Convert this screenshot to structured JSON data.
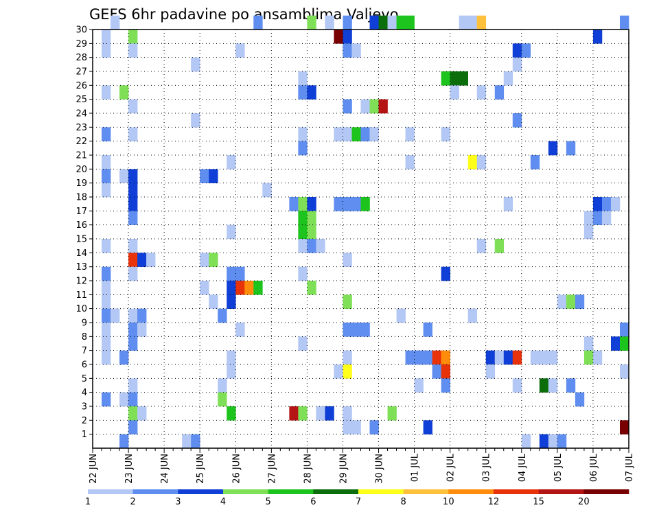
{
  "chart_data": {
    "type": "heatmap",
    "title": "GEFS 6hr padavine po ansamblima Valjevo",
    "xlabel": "",
    "ylabel": "",
    "x_ticks": [
      "22 JUN",
      "23 JUN",
      "24 JUN",
      "25 JUN",
      "26 JUN",
      "27 JUN",
      "28 JUN",
      "29 JUN",
      "30 JUN",
      "01 JUL",
      "02 JUL",
      "03 JUL",
      "04 JUL",
      "05 JUL",
      "06 JUL",
      "07 JUL"
    ],
    "y_ticks": [
      "1",
      "2",
      "3",
      "4",
      "5",
      "6",
      "7",
      "8",
      "9",
      "10",
      "11",
      "12",
      "13",
      "14",
      "15",
      "16",
      "17",
      "18",
      "19",
      "20",
      "21",
      "22",
      "23",
      "24",
      "25",
      "26",
      "27",
      "28",
      "29",
      "30"
    ],
    "x_unit": "6-hour steps from 22 JUN 00 UTC",
    "ylim": [
      0,
      30
    ],
    "grid": true,
    "colorbar": {
      "labels": [
        "1",
        "2",
        "3",
        "4",
        "5",
        "6",
        "7",
        "8",
        "10",
        "12",
        "15",
        "20"
      ],
      "colors": [
        "#b4c8f5",
        "#5f8ef0",
        "#0f3fd6",
        "#7fe058",
        "#1dc41d",
        "#0b6e0b",
        "#ffff19",
        "#ffc03c",
        "#ff8c0a",
        "#e8320a",
        "#b41414",
        "#780000"
      ]
    },
    "cells": [
      [
        2,
        30,
        0
      ],
      [
        18,
        30,
        1
      ],
      [
        24,
        30,
        3
      ],
      [
        26,
        30,
        0
      ],
      [
        28,
        30,
        1
      ],
      [
        31,
        30,
        2
      ],
      [
        32,
        30,
        5
      ],
      [
        33,
        30,
        0
      ],
      [
        34,
        30,
        4
      ],
      [
        35,
        30,
        4
      ],
      [
        41,
        30,
        0
      ],
      [
        42,
        30,
        0
      ],
      [
        43,
        30,
        7
      ],
      [
        59,
        30,
        1
      ],
      [
        1,
        29,
        0
      ],
      [
        4,
        29,
        3
      ],
      [
        27,
        29,
        11
      ],
      [
        28,
        29,
        2
      ],
      [
        56,
        29,
        2
      ],
      [
        1,
        28,
        0
      ],
      [
        4,
        28,
        0
      ],
      [
        16,
        28,
        0
      ],
      [
        28,
        28,
        1
      ],
      [
        29,
        28,
        0
      ],
      [
        47,
        28,
        2
      ],
      [
        48,
        28,
        1
      ],
      [
        11,
        27,
        0
      ],
      [
        47,
        27,
        0
      ],
      [
        23,
        26,
        0
      ],
      [
        39,
        26,
        4
      ],
      [
        40,
        26,
        5
      ],
      [
        41,
        26,
        5
      ],
      [
        46,
        26,
        0
      ],
      [
        1,
        25,
        0
      ],
      [
        3,
        25,
        3
      ],
      [
        23,
        25,
        1
      ],
      [
        24,
        25,
        2
      ],
      [
        40,
        25,
        0
      ],
      [
        43,
        25,
        0
      ],
      [
        45,
        25,
        1
      ],
      [
        4,
        24,
        0
      ],
      [
        28,
        24,
        1
      ],
      [
        30,
        24,
        0
      ],
      [
        31,
        24,
        3
      ],
      [
        32,
        24,
        10
      ],
      [
        11,
        23,
        0
      ],
      [
        47,
        23,
        1
      ],
      [
        1,
        22,
        1
      ],
      [
        4,
        22,
        0
      ],
      [
        23,
        22,
        0
      ],
      [
        27,
        22,
        0
      ],
      [
        28,
        22,
        0
      ],
      [
        29,
        22,
        4
      ],
      [
        30,
        22,
        1
      ],
      [
        31,
        22,
        0
      ],
      [
        35,
        22,
        0
      ],
      [
        39,
        22,
        0
      ],
      [
        23,
        21,
        1
      ],
      [
        51,
        21,
        2
      ],
      [
        53,
        21,
        1
      ],
      [
        1,
        20,
        0
      ],
      [
        15,
        20,
        0
      ],
      [
        35,
        20,
        0
      ],
      [
        42,
        20,
        6
      ],
      [
        43,
        20,
        0
      ],
      [
        49,
        20,
        1
      ],
      [
        1,
        19,
        1
      ],
      [
        3,
        19,
        0
      ],
      [
        4,
        19,
        2
      ],
      [
        12,
        19,
        1
      ],
      [
        13,
        19,
        2
      ],
      [
        1,
        18,
        0
      ],
      [
        4,
        18,
        2
      ],
      [
        19,
        18,
        0
      ],
      [
        4,
        17,
        2
      ],
      [
        22,
        17,
        1
      ],
      [
        23,
        17,
        3
      ],
      [
        24,
        17,
        2
      ],
      [
        27,
        17,
        1
      ],
      [
        28,
        17,
        1
      ],
      [
        29,
        17,
        1
      ],
      [
        30,
        17,
        4
      ],
      [
        46,
        17,
        0
      ],
      [
        56,
        17,
        2
      ],
      [
        57,
        17,
        1
      ],
      [
        58,
        17,
        0
      ],
      [
        4,
        16,
        1
      ],
      [
        23,
        16,
        4
      ],
      [
        24,
        16,
        3
      ],
      [
        55,
        16,
        0
      ],
      [
        56,
        16,
        1
      ],
      [
        57,
        16,
        0
      ],
      [
        15,
        15,
        0
      ],
      [
        23,
        15,
        4
      ],
      [
        24,
        15,
        3
      ],
      [
        55,
        15,
        0
      ],
      [
        1,
        14,
        0
      ],
      [
        4,
        14,
        0
      ],
      [
        23,
        14,
        0
      ],
      [
        24,
        14,
        1
      ],
      [
        25,
        14,
        0
      ],
      [
        43,
        14,
        0
      ],
      [
        45,
        14,
        3
      ],
      [
        4,
        13,
        9
      ],
      [
        5,
        13,
        2
      ],
      [
        6,
        13,
        0
      ],
      [
        12,
        13,
        0
      ],
      [
        13,
        13,
        3
      ],
      [
        28,
        13,
        0
      ],
      [
        1,
        12,
        1
      ],
      [
        4,
        12,
        0
      ],
      [
        15,
        12,
        1
      ],
      [
        16,
        12,
        1
      ],
      [
        23,
        12,
        0
      ],
      [
        39,
        12,
        2
      ],
      [
        1,
        11,
        0
      ],
      [
        12,
        11,
        0
      ],
      [
        15,
        11,
        2
      ],
      [
        16,
        11,
        9
      ],
      [
        17,
        11,
        8
      ],
      [
        18,
        11,
        4
      ],
      [
        24,
        11,
        3
      ],
      [
        1,
        10,
        0
      ],
      [
        13,
        10,
        0
      ],
      [
        15,
        10,
        2
      ],
      [
        28,
        10,
        3
      ],
      [
        52,
        10,
        0
      ],
      [
        53,
        10,
        3
      ],
      [
        54,
        10,
        1
      ],
      [
        1,
        9,
        1
      ],
      [
        2,
        9,
        0
      ],
      [
        4,
        9,
        0
      ],
      [
        5,
        9,
        1
      ],
      [
        14,
        9,
        1
      ],
      [
        34,
        9,
        0
      ],
      [
        42,
        9,
        0
      ],
      [
        1,
        8,
        0
      ],
      [
        4,
        8,
        1
      ],
      [
        5,
        8,
        0
      ],
      [
        16,
        8,
        0
      ],
      [
        28,
        8,
        1
      ],
      [
        29,
        8,
        1
      ],
      [
        30,
        8,
        1
      ],
      [
        37,
        8,
        1
      ],
      [
        59,
        8,
        1
      ],
      [
        1,
        7,
        0
      ],
      [
        4,
        7,
        1
      ],
      [
        23,
        7,
        0
      ],
      [
        55,
        7,
        0
      ],
      [
        58,
        7,
        2
      ],
      [
        59,
        7,
        4
      ],
      [
        1,
        6,
        0
      ],
      [
        3,
        6,
        1
      ],
      [
        15,
        6,
        0
      ],
      [
        28,
        6,
        0
      ],
      [
        35,
        6,
        1
      ],
      [
        36,
        6,
        1
      ],
      [
        37,
        6,
        1
      ],
      [
        38,
        6,
        9
      ],
      [
        39,
        6,
        8
      ],
      [
        44,
        6,
        2
      ],
      [
        45,
        6,
        0
      ],
      [
        46,
        6,
        2
      ],
      [
        47,
        6,
        9
      ],
      [
        49,
        6,
        0
      ],
      [
        50,
        6,
        0
      ],
      [
        51,
        6,
        0
      ],
      [
        55,
        6,
        3
      ],
      [
        56,
        6,
        0
      ],
      [
        15,
        5,
        0
      ],
      [
        27,
        5,
        0
      ],
      [
        28,
        5,
        6
      ],
      [
        38,
        5,
        1
      ],
      [
        39,
        5,
        9
      ],
      [
        44,
        5,
        0
      ],
      [
        59,
        5,
        0
      ],
      [
        4,
        4,
        0
      ],
      [
        14,
        4,
        0
      ],
      [
        36,
        4,
        0
      ],
      [
        39,
        4,
        1
      ],
      [
        47,
        4,
        0
      ],
      [
        50,
        4,
        5
      ],
      [
        51,
        4,
        0
      ],
      [
        53,
        4,
        1
      ],
      [
        1,
        3,
        1
      ],
      [
        3,
        3,
        0
      ],
      [
        4,
        3,
        1
      ],
      [
        14,
        3,
        3
      ],
      [
        54,
        3,
        1
      ],
      [
        4,
        2,
        3
      ],
      [
        5,
        2,
        0
      ],
      [
        15,
        2,
        4
      ],
      [
        22,
        2,
        10
      ],
      [
        23,
        2,
        3
      ],
      [
        25,
        2,
        0
      ],
      [
        26,
        2,
        2
      ],
      [
        28,
        2,
        0
      ],
      [
        33,
        2,
        3
      ],
      [
        4,
        1,
        1
      ],
      [
        28,
        1,
        0
      ],
      [
        29,
        1,
        0
      ],
      [
        31,
        1,
        1
      ],
      [
        37,
        1,
        2
      ],
      [
        59,
        1,
        11
      ],
      [
        3,
        0,
        1
      ],
      [
        10,
        0,
        0
      ],
      [
        11,
        0,
        1
      ],
      [
        48,
        0,
        0
      ],
      [
        50,
        0,
        2
      ],
      [
        51,
        0,
        0
      ],
      [
        52,
        0,
        1
      ]
    ]
  }
}
